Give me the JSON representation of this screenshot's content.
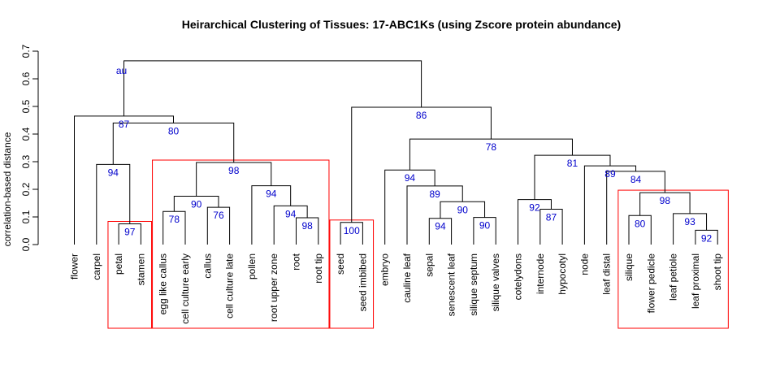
{
  "chart_data": {
    "type": "dendrogram",
    "title": "Heirarchical Clustering of Tissues: 17-ABC1Ks (using Zscore protein abundance)",
    "ylabel": "correlation-based distance",
    "ylim": [
      0,
      0.7
    ],
    "yticks": [
      "0.0",
      "0.1",
      "0.2",
      "0.3",
      "0.4",
      "0.5",
      "0.6",
      "0.7"
    ],
    "au_legend": "au",
    "colors": {
      "branch": "#000000",
      "au": "#0000cc",
      "box": "#ff0000"
    },
    "leaves": [
      "flower",
      "carpel",
      "petal",
      "stamen",
      "egg like callus",
      "cell culture early",
      "callus",
      "cell culture late",
      "pollen",
      "root upper zone",
      "root",
      "root tip",
      "seed",
      "seed imbibed",
      "embryo",
      "cauline leaf",
      "sepal",
      "senescent leaf",
      "silique septum",
      "silique valves",
      "cotelydons",
      "internode",
      "hypocotyl",
      "node",
      "leaf distal",
      "silique",
      "flower pedicle",
      "leaf petiole",
      "leaf proximal",
      "shoot tip"
    ],
    "merges": [
      {
        "id": "m1",
        "left": "petal",
        "right": "stamen",
        "height": 0.075,
        "au": "97"
      },
      {
        "id": "m2",
        "left": "egg like callus",
        "right": "cell culture early",
        "height": 0.12,
        "au": "78"
      },
      {
        "id": "m3",
        "left": "callus",
        "right": "cell culture late",
        "height": 0.135,
        "au": "76"
      },
      {
        "id": "m4",
        "left": "m2",
        "right": "m3",
        "height": 0.175,
        "au": "90"
      },
      {
        "id": "m5",
        "left": "root",
        "right": "root tip",
        "height": 0.097,
        "au": "98"
      },
      {
        "id": "m6",
        "left": "root upper zone",
        "right": "m5",
        "height": 0.14,
        "au": "94"
      },
      {
        "id": "m7",
        "left": "pollen",
        "right": "m6",
        "height": 0.213,
        "au": "94"
      },
      {
        "id": "m8",
        "left": "m4",
        "right": "m7",
        "height": 0.297,
        "au": "98"
      },
      {
        "id": "m9",
        "left": "carpel",
        "right": "m1",
        "height": 0.29,
        "au": "94"
      },
      {
        "id": "m10",
        "left": "m9",
        "right": "m8",
        "height": 0.44,
        "au": "80"
      },
      {
        "id": "m11",
        "left": "flower",
        "right": "m10",
        "height": 0.465,
        "au": "87"
      },
      {
        "id": "m12",
        "left": "seed",
        "right": "seed imbibed",
        "height": 0.08,
        "au": "100"
      },
      {
        "id": "m13",
        "left": "sepal",
        "right": "senescent leaf",
        "height": 0.095,
        "au": "94"
      },
      {
        "id": "m14",
        "left": "silique septum",
        "right": "silique valves",
        "height": 0.098,
        "au": "90"
      },
      {
        "id": "m15",
        "left": "m13",
        "right": "m14",
        "height": 0.155,
        "au": "90"
      },
      {
        "id": "m16",
        "left": "cauline leaf",
        "right": "m15",
        "height": 0.212,
        "au": "89"
      },
      {
        "id": "m17",
        "left": "embryo",
        "right": "m16",
        "height": 0.27,
        "au": "94"
      },
      {
        "id": "m18",
        "left": "internode",
        "right": "hypocotyl",
        "height": 0.128,
        "au": "87"
      },
      {
        "id": "m19",
        "left": "cotelydons",
        "right": "m18",
        "height": 0.163,
        "au": "92"
      },
      {
        "id": "m20",
        "left": "leaf proximal",
        "right": "shoot tip",
        "height": 0.052,
        "au": "92"
      },
      {
        "id": "m21",
        "left": "leaf petiole",
        "right": "m20",
        "height": 0.112,
        "au": "93"
      },
      {
        "id": "m22",
        "left": "silique",
        "right": "flower pedicle",
        "height": 0.105,
        "au": "80"
      },
      {
        "id": "m23",
        "left": "m22",
        "right": "m21",
        "height": 0.188,
        "au": "98"
      },
      {
        "id": "m24",
        "left": "leaf distal",
        "right": "m23",
        "height": 0.265,
        "au": "84"
      },
      {
        "id": "m25",
        "left": "node",
        "right": "m24",
        "height": 0.285,
        "au": "89"
      },
      {
        "id": "m26",
        "left": "m19",
        "right": "m25",
        "height": 0.323,
        "au": "81"
      },
      {
        "id": "m27",
        "left": "m17",
        "right": "m26",
        "height": 0.382,
        "au": "78"
      },
      {
        "id": "m28",
        "left": "m12",
        "right": "m27",
        "height": 0.497,
        "au": "86"
      },
      {
        "id": "m29",
        "left": "m11",
        "right": "m28",
        "height": 0.665,
        "au": ""
      }
    ],
    "clusters": [
      {
        "from": "petal",
        "to": "stamen"
      },
      {
        "from": "egg like callus",
        "to": "root tip"
      },
      {
        "from": "seed",
        "to": "seed imbibed"
      },
      {
        "from": "silique",
        "to": "shoot tip"
      }
    ]
  }
}
